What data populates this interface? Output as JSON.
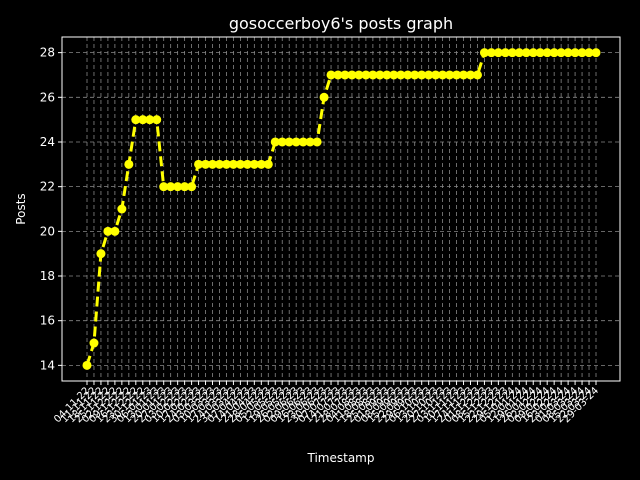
{
  "chart_data": {
    "type": "line",
    "title": "gosoccerboy6's posts graph",
    "xlabel": "Timestamp",
    "ylabel": "Posts",
    "categories": [
      "04-11-22",
      "11-11-22",
      "18-11-22",
      "25-11-22",
      "02-12-22",
      "09-12-22",
      "16-12-22",
      "23-12-22",
      "30-12-22",
      "06-01-23",
      "13-01-23",
      "20-01-23",
      "27-01-23",
      "03-02-23",
      "10-02-23",
      "17-02-23",
      "24-02-23",
      "03-03-23",
      "10-03-23",
      "17-03-23",
      "24-03-23",
      "31-03-23",
      "07-04-23",
      "14-04-23",
      "21-04-23",
      "28-04-23",
      "05-05-23",
      "12-05-23",
      "19-05-23",
      "26-05-23",
      "02-06-23",
      "09-06-23",
      "16-06-23",
      "23-06-23",
      "30-06-23",
      "07-07-23",
      "14-07-23",
      "21-07-23",
      "28-07-23",
      "04-08-23",
      "11-08-23",
      "18-08-23",
      "25-08-23",
      "01-09-23",
      "08-09-23",
      "15-09-23",
      "22-09-23",
      "29-09-23",
      "06-10-23",
      "13-10-23",
      "20-10-23",
      "27-10-23",
      "03-11-23",
      "10-11-23",
      "17-11-23",
      "24-11-23",
      "01-12-23",
      "08-12-23",
      "15-12-23",
      "22-12-23",
      "29-12-23",
      "05-01-24",
      "12-01-24",
      "19-01-24",
      "26-01-24",
      "02-02-24",
      "09-02-24",
      "16-02-24",
      "23-02-24",
      "01-03-24",
      "08-03-24",
      "15-03-24",
      "22-03-24",
      "29-03-24"
    ],
    "series": [
      {
        "name": "Posts",
        "color": "#ffff00",
        "values": [
          14,
          15,
          19,
          20,
          20,
          21,
          23,
          25,
          25,
          25,
          25,
          22,
          22,
          22,
          22,
          22,
          23,
          23,
          23,
          23,
          23,
          23,
          23,
          23,
          23,
          23,
          23,
          24,
          24,
          24,
          24,
          24,
          24,
          24,
          26,
          27,
          27,
          27,
          27,
          27,
          27,
          27,
          27,
          27,
          27,
          27,
          27,
          27,
          27,
          27,
          27,
          27,
          27,
          27,
          27,
          27,
          27,
          28,
          28,
          28,
          28,
          28,
          28,
          28,
          28,
          28,
          28,
          28,
          28,
          28,
          28,
          28,
          28,
          28
        ]
      }
    ],
    "ylim": [
      13.3,
      28.7
    ],
    "yticks": [
      14,
      16,
      18,
      20,
      22,
      24,
      26,
      28
    ],
    "grid": true
  }
}
